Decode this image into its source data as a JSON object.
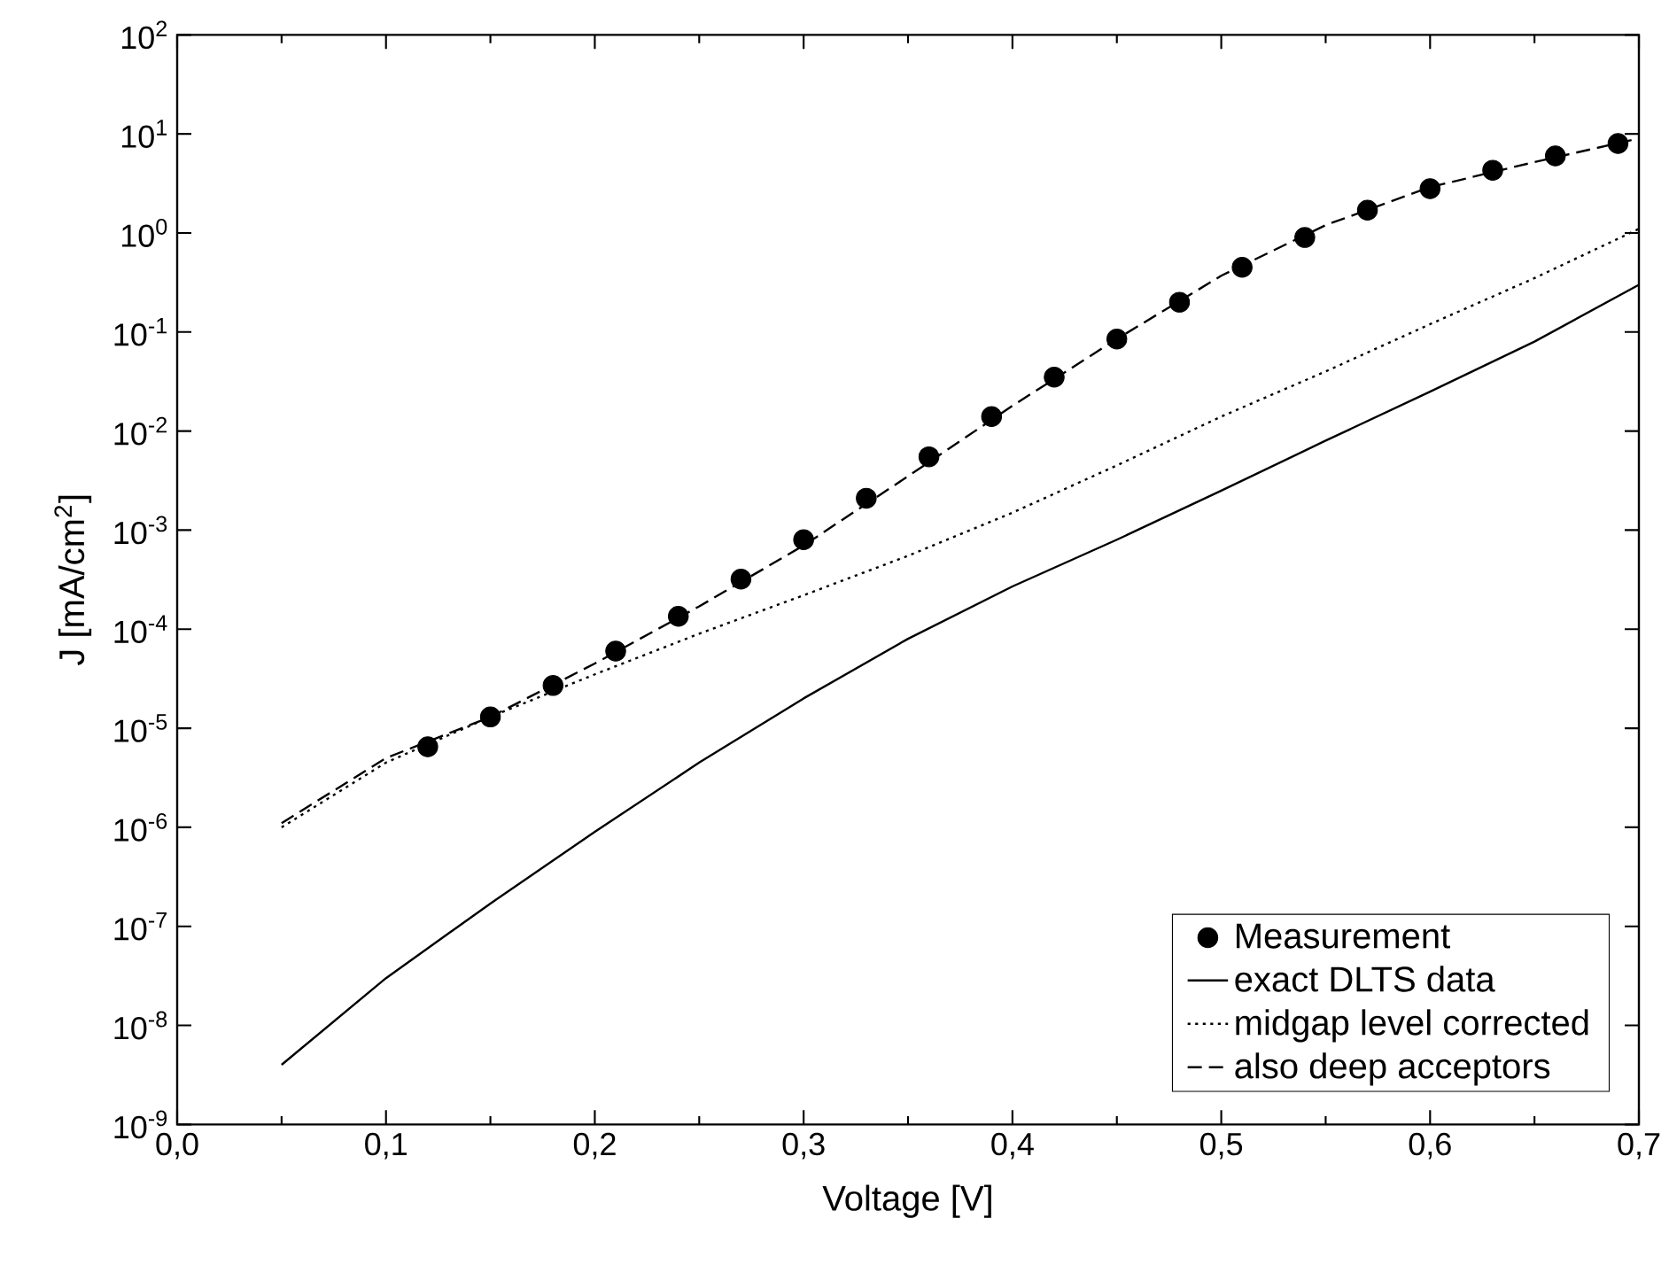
{
  "chart_data": {
    "type": "line",
    "xlabel": "Voltage [V]",
    "ylabel": "J [mA/cm$^{2}$]",
    "log": "y",
    "xlim": [
      0,
      0.7
    ],
    "ylim": [
      1e-09,
      100
    ],
    "xticks": [
      {
        "value": 0,
        "label": "0,0"
      },
      {
        "value": 0.1,
        "label": "0,1"
      },
      {
        "value": 0.2,
        "label": "0,2"
      },
      {
        "value": 0.3,
        "label": "0,3"
      },
      {
        "value": 0.4,
        "label": "0,4"
      },
      {
        "value": 0.5,
        "label": "0,5"
      },
      {
        "value": 0.6,
        "label": "0,6"
      },
      {
        "value": 0.7,
        "label": "0,7"
      }
    ],
    "yticks": [
      {
        "value": 1e-09,
        "label": "10$^{-9}$"
      },
      {
        "value": 1e-08,
        "label": "10$^{-8}$"
      },
      {
        "value": 1e-07,
        "label": "10$^{-7}$"
      },
      {
        "value": 1e-06,
        "label": "10$^{-6}$"
      },
      {
        "value": 1e-05,
        "label": "10$^{-5}$"
      },
      {
        "value": 0.0001,
        "label": "10$^{-4}$"
      },
      {
        "value": 0.001,
        "label": "10$^{-3}$"
      },
      {
        "value": 0.01,
        "label": "10$^{-2}$"
      },
      {
        "value": 0.1,
        "label": "10$^{-1}$"
      },
      {
        "value": 1,
        "label": "10$^{0}$"
      },
      {
        "value": 10,
        "label": "10$^{1}$"
      },
      {
        "value": 100,
        "label": "10$^{2}$"
      }
    ],
    "legend": "bottom right",
    "grid": false,
    "series": [
      {
        "name": "Measurement",
        "type": "scatter",
        "marker": "circle",
        "color": "#000000",
        "x": [
          0.12,
          0.15,
          0.18,
          0.21,
          0.24,
          0.27,
          0.3,
          0.33,
          0.36,
          0.39,
          0.42,
          0.45,
          0.48,
          0.51,
          0.54,
          0.57,
          0.6,
          0.63,
          0.66,
          0.69
        ],
        "values": [
          6.5e-06,
          1.3e-05,
          2.7e-05,
          6e-05,
          0.000135,
          0.00032,
          0.0008,
          0.0021,
          0.0055,
          0.014,
          0.035,
          0.085,
          0.2,
          0.45,
          0.9,
          1.7,
          2.8,
          4.3,
          6,
          8
        ]
      },
      {
        "name": "exact DLTS data",
        "type": "line",
        "marker": "none",
        "line_style": "solid",
        "color": "#000000",
        "x": [
          0.05,
          0.1,
          0.15,
          0.2,
          0.25,
          0.3,
          0.35,
          0.4,
          0.45,
          0.5,
          0.55,
          0.6,
          0.65,
          0.7
        ],
        "values": [
          4e-09,
          3e-08,
          1.7e-07,
          9e-07,
          4.5e-06,
          2e-05,
          8e-05,
          0.00027,
          0.0008,
          0.0025,
          0.008,
          0.025,
          0.08,
          0.3
        ]
      },
      {
        "name": "midgap level corrected",
        "type": "line",
        "marker": "none",
        "line_style": "dotted",
        "color": "#000000",
        "x": [
          0.05,
          0.1,
          0.15,
          0.2,
          0.25,
          0.3,
          0.35,
          0.4,
          0.45,
          0.5,
          0.55,
          0.6,
          0.65,
          0.7
        ],
        "values": [
          1e-06,
          4.5e-06,
          1.3e-05,
          3.5e-05,
          9e-05,
          0.00022,
          0.00055,
          0.0015,
          0.0045,
          0.014,
          0.04,
          0.12,
          0.35,
          1.1
        ]
      },
      {
        "name": "also deep acceptors",
        "type": "line",
        "marker": "none",
        "line_style": "dashed",
        "color": "#000000",
        "x": [
          0.05,
          0.1,
          0.15,
          0.2,
          0.25,
          0.3,
          0.35,
          0.4,
          0.45,
          0.5,
          0.55,
          0.6,
          0.65,
          0.7
        ],
        "values": [
          1.1e-06,
          5e-06,
          1.3e-05,
          4.5e-05,
          0.00017,
          0.0007,
          0.0035,
          0.018,
          0.085,
          0.37,
          1.2,
          2.9,
          5.2,
          9
        ]
      }
    ]
  }
}
